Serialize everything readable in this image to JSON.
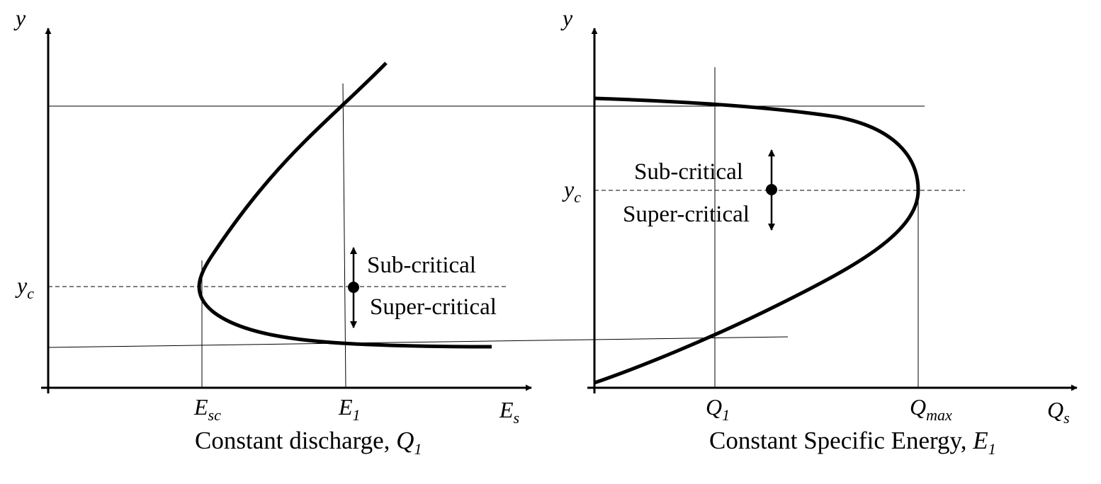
{
  "left_panel": {
    "y_axis_label": "y",
    "x_axis_label": "E",
    "x_axis_label_sub": "s",
    "yc_label": "y",
    "yc_label_sub": "c",
    "tick_esc": "E",
    "tick_esc_sub": "sc",
    "tick_e1": "E",
    "tick_e1_sub": "1",
    "sub_critical": "Sub-critical",
    "super_critical": "Super-critical",
    "caption": "Constant discharge, ",
    "caption_var": "Q",
    "caption_var_sub": "1"
  },
  "right_panel": {
    "y_axis_label": "y",
    "x_axis_label": "Q",
    "x_axis_label_sub": "s",
    "yc_label": "y",
    "yc_label_sub": "c",
    "tick_q1": "Q",
    "tick_q1_sub": "1",
    "tick_qmax": "Q",
    "tick_qmax_sub": "max",
    "sub_critical": "Sub-critical",
    "super_critical": "Super-critical",
    "caption": "Constant Specific Energy, ",
    "caption_var": "E",
    "caption_var_sub": "1"
  }
}
